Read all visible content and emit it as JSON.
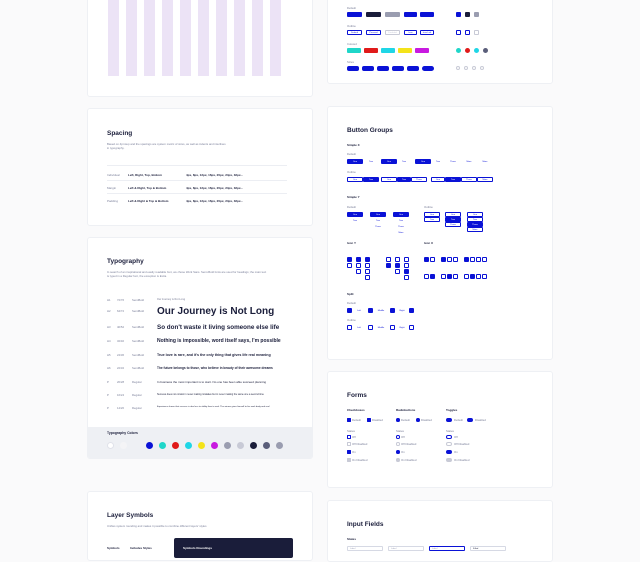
{
  "spacing": {
    "title": "Spacing",
    "description": "Based on 4pt step and the spacings are system metric of sizes, as well as indents and interlines in typography.",
    "rows": [
      {
        "name": "Individual",
        "sides": "Left, Right, Top, Bottom",
        "values": "4px, 8px, 12px, 16px, 20px, 24px, 32px..."
      },
      {
        "name": "Margin",
        "sides": "Left & Right, Top & Bottom",
        "values": "4px, 8px, 12px, 16px, 20px, 24px, 32px..."
      },
      {
        "name": "Padding",
        "sides": "Left & Right & Top & Bottom",
        "values": "4px, 8px, 12px, 16px, 20px, 24px, 32px..."
      }
    ]
  },
  "typography": {
    "title": "Typography",
    "description": "In search of an inspirational and easily readable font, we chose Work Sans. Semi-Bold fonts are used for headings; the main text is typed in a Regular font, the exception is Extra.",
    "rows": [
      {
        "n": "H1",
        "size": "72/76",
        "weight": "SemiBold",
        "text": "Our Journey is Not Long"
      },
      {
        "n": "H2",
        "size": "64/72",
        "weight": "SemiBold",
        "text": "Our Journey is Not Long"
      },
      {
        "n": "H3",
        "size": "40/52",
        "weight": "SemiBold",
        "text": "So don't waste it living someone else life"
      },
      {
        "n": "H4",
        "size": "32/40",
        "weight": "SemiBold",
        "text": "Nothing is impossible, word itself says, I'm possible"
      },
      {
        "n": "H5",
        "size": "24/36",
        "weight": "SemiBold",
        "text": "True love is rare, and it's the only thing that gives life real meaning"
      },
      {
        "n": "H6",
        "size": "22/32",
        "weight": "SemiBold",
        "text": "The future belongs to those, who believe in beauty of their awesome dreams"
      },
      {
        "n": "P",
        "size": "20/28",
        "weight": "Regular",
        "text": "In business the most important is to start. No one has been able succeed planning"
      },
      {
        "n": "P",
        "size": "16/24",
        "weight": "Regular",
        "text": "Success does not consist in never making mistakes but in never making the same one a second time"
      },
      {
        "n": "P",
        "size": "14/20",
        "weight": "Regular",
        "text": "Experience shows that success is due less to ability than to zeal. The winner gives himself to his work body and soul"
      }
    ],
    "colors_title": "Typography Colors",
    "colors": [
      "#ffffff",
      "#f4f4f6",
      "#eef0f4",
      "#0a12d6",
      "#1fd6c9",
      "#e01a1a",
      "#1fd6e6",
      "#f4e31a",
      "#c81ae0",
      "#9a9db0",
      "#c8cad6",
      "#1a1d3a",
      "#5a5e7a",
      "#9a9db0"
    ]
  },
  "layer_symbols": {
    "title": "Layer Symbols",
    "description": "Unifies system rounding and makes it possible to combine different layers' styles",
    "col1": "Symbols",
    "col2": "Includes Styles",
    "panel_title": "Symbols Roundings"
  },
  "button_groups": {
    "title": "Button Groups",
    "simple_x": "Simple X",
    "simple_y": "Simple Y",
    "icon_y": "Icon Y",
    "icon_x": "Icon X",
    "split": "Split",
    "label_one": "One",
    "label_two": "Two",
    "label_three": "Three",
    "label_more": "More",
    "label_left": "Left",
    "label_middle": "Middle",
    "label_right": "Right"
  },
  "forms": {
    "title": "Forms",
    "checkboxes": "Checkboxes",
    "radiobuttons": "Radiobuttons",
    "toggles": "Toggles",
    "default": "Default",
    "disabled": "Disabled",
    "off": "Off",
    "on": "On",
    "off_disabled": "Off Disabled",
    "on_disabled": "On Disabled"
  },
  "inputs": {
    "title": "Input Fields",
    "states": "States",
    "f1": "Label",
    "f2": "Label",
    "f3": "Label",
    "f4": "Filled"
  },
  "top_buttons": {
    "default": "Default",
    "pressed": "Pressed",
    "disabled": "Disabled",
    "icon": "Icon",
    "icon_left": "Icon Left",
    "icon_right": "Icon R"
  }
}
